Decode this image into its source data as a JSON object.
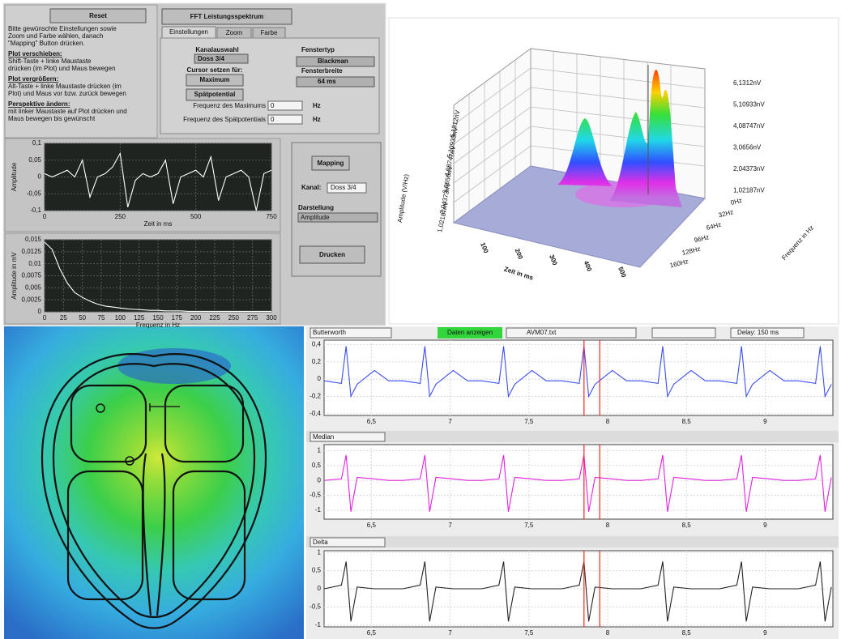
{
  "left_panel": {
    "reset": "Reset",
    "instructions": [
      "Bitte gewünschte Einstellungen sowie",
      "Zoom und Farbe wählen, danach",
      "\"Mapping\" Button drücken.",
      "Plot verschieben:",
      "Shift-Taste + linke Maustaste",
      "drücken (im Plot) und Maus bewegen",
      "Plot vergrößern:",
      "Alt-Taste + linke Maustaste drücken (im",
      "Plot) und Maus vor bzw. zurück bewegen",
      "Perspektive ändern:",
      "mit linker Maustaste auf Plot drücken und",
      "Maus bewegen bis gewünscht"
    ]
  },
  "fft_panel": {
    "title": "FFT Leistungsspektrum",
    "tabs": [
      "Einstellungen",
      "Zoom",
      "Farbe"
    ],
    "channel_label": "Kanalauswahl",
    "channel": "Doss 3/4",
    "cursor_label": "Cursor setzen für:",
    "maximum": "Maximum",
    "late_potential": "Spätpotential",
    "window_label": "Fenstertyp",
    "window": "Blackman",
    "width_label": "Fensterbreite",
    "width": "64 ms",
    "max_freq_label": "Frequenz des Maximums",
    "max_freq": "0",
    "late_freq_label": "Frequenz des Spätpotentials",
    "late_freq": "0",
    "unit": "Hz"
  },
  "mapping_panel": {
    "mapping": "Mapping",
    "channel_label": "Kanal:",
    "channel": "Doss 3/4",
    "display_label": "Darstellung",
    "display": "Amplitude",
    "print": "Drucken"
  },
  "surface_plot": {
    "z_label": "Amplitude (V/Hz)",
    "z_ticks": [
      "1,02187nV",
      "2,04373nV",
      "3,0656nV",
      "4,08747nV",
      "5,10933nV",
      "6,1312nV"
    ],
    "legend": [
      "6,1312nV",
      "5,10933nV",
      "4,08747nV",
      "3,0656nV",
      "2,04373nV",
      "1,02187nV"
    ],
    "freq_ticks": [
      "0Hz",
      "32Hz",
      "64Hz",
      "96Hz",
      "128Hz",
      "160Hz"
    ],
    "freq_label": "Frequenz in Hz",
    "time_ticks": [
      100,
      200,
      300,
      400,
      500
    ],
    "time_label": "Zeit in ms"
  },
  "ecg_toolbar": {
    "filter": "Butterworth",
    "show": "Daten anzeigen",
    "file": "AVM07.txt",
    "delay": "Delay: 150 ms",
    "trace2": "Median",
    "trace3": "Delta"
  },
  "chart_data": [
    {
      "type": "line",
      "xlabel": "Zeit in ms",
      "ylabel": "Amplitude",
      "color": "#ffffff",
      "x": [
        0,
        25,
        50,
        75,
        100,
        125,
        150,
        175,
        200,
        225,
        250,
        275,
        300,
        325,
        350,
        375,
        400,
        425,
        450,
        475,
        500,
        525,
        550,
        575,
        600,
        625,
        650,
        675,
        700,
        725,
        750
      ],
      "values": [
        0.01,
        0.0,
        0.01,
        0.02,
        0.0,
        0.05,
        -0.06,
        0.0,
        0.01,
        0.03,
        0.07,
        -0.09,
        -0.01,
        0.01,
        0.0,
        0.01,
        0.05,
        -0.08,
        0.0,
        0.01,
        0.02,
        0.0,
        0.06,
        -0.07,
        0.0,
        0.01,
        0.02,
        0.0,
        -0.1,
        0.01,
        0.02
      ],
      "xlim": [
        0,
        750
      ],
      "xticks": [
        0,
        250,
        500,
        750
      ],
      "ylim": [
        -0.1,
        0.1
      ],
      "yticks": [
        {
          "value": -0.1,
          "label": "-0,1"
        },
        {
          "value": -0.05,
          "label": "-0,05"
        },
        0,
        {
          "value": 0.05,
          "label": "0,05"
        },
        {
          "value": 0.1,
          "label": "0,1"
        }
      ],
      "grid": true
    },
    {
      "type": "line",
      "xlabel": "Frequenz in Hz",
      "ylabel": "Amplitude in mV",
      "color": "#ffffff",
      "x": [
        0,
        10,
        20,
        30,
        40,
        50,
        60,
        70,
        80,
        90,
        100,
        110,
        120,
        130,
        140,
        150,
        160,
        170,
        180,
        190,
        200,
        210,
        220,
        230,
        240,
        250,
        260,
        270,
        280,
        290,
        300
      ],
      "values": [
        0.0145,
        0.013,
        0.009,
        0.006,
        0.004,
        0.003,
        0.0022,
        0.0016,
        0.0012,
        0.001,
        0.0008,
        0.0006,
        0.0005,
        0.0004,
        0.0003,
        0.0003,
        0.0002,
        0.0002,
        0.0002,
        0.0001,
        0.0001,
        0.0001,
        0.0001,
        0.0001,
        0.0001,
        0.0001,
        0.0001,
        0.0001,
        0.0001,
        0.0001,
        0.0001
      ],
      "xlim": [
        0,
        300
      ],
      "xticks": [
        0,
        25,
        50,
        75,
        100,
        125,
        150,
        175,
        200,
        225,
        250,
        275,
        300
      ],
      "ylim": [
        0,
        0.015
      ],
      "yticks": [
        0,
        {
          "value": 0.0025,
          "label": "0,0025"
        },
        {
          "value": 0.005,
          "label": "0,005"
        },
        {
          "value": 0.0075,
          "label": "0,0075"
        },
        {
          "value": 0.01,
          "label": "0,01"
        },
        {
          "value": 0.0125,
          "label": "0,0125"
        },
        {
          "value": 0.015,
          "label": "0,015"
        }
      ],
      "grid": true
    },
    {
      "type": "line",
      "color": "#3a4cf0",
      "x": [
        6.2,
        6.31,
        6.34,
        6.37,
        6.41,
        6.52,
        6.61,
        6.7,
        6.81,
        6.84,
        6.87,
        6.91,
        7.02,
        7.11,
        7.2,
        7.31,
        7.34,
        7.37,
        7.41,
        7.52,
        7.61,
        7.71,
        7.82,
        7.85,
        7.88,
        7.92,
        8.03,
        8.12,
        8.21,
        8.32,
        8.35,
        8.38,
        8.42,
        8.53,
        8.62,
        8.71,
        8.82,
        8.85,
        8.88,
        8.92,
        9.03,
        9.12,
        9.21,
        9.32,
        9.35,
        9.38,
        9.42
      ],
      "values": [
        -0.02,
        -0.05,
        0.38,
        -0.2,
        -0.06,
        0.1,
        -0.02,
        -0.02,
        -0.05,
        0.38,
        -0.2,
        -0.06,
        0.1,
        -0.02,
        -0.02,
        -0.05,
        0.38,
        -0.2,
        -0.06,
        0.1,
        -0.02,
        -0.02,
        -0.05,
        0.38,
        -0.2,
        -0.06,
        0.1,
        -0.02,
        -0.02,
        -0.05,
        0.38,
        -0.2,
        -0.06,
        0.1,
        -0.02,
        -0.02,
        -0.05,
        0.38,
        -0.2,
        -0.06,
        0.1,
        -0.02,
        -0.02,
        -0.05,
        0.38,
        -0.2,
        -0.06
      ],
      "xlim": [
        6.2,
        9.43
      ],
      "xticks": [
        {
          "value": 6.5,
          "label": "6,5"
        },
        7,
        {
          "value": 7.5,
          "label": "7,5"
        },
        8,
        {
          "value": 8.5,
          "label": "8,5"
        },
        9
      ],
      "ylim": [
        -0.42,
        0.45
      ],
      "yticks": [
        {
          "value": -0.4,
          "label": "-0,4"
        },
        {
          "value": -0.2,
          "label": "-0,2"
        },
        0,
        {
          "value": 0.2,
          "label": "0,2"
        },
        {
          "value": 0.4,
          "label": "0,4"
        }
      ],
      "grid": true,
      "cursors": [
        7.85,
        7.95
      ]
    },
    {
      "type": "line",
      "color": "#e020e0",
      "x": [
        6.2,
        6.31,
        6.34,
        6.37,
        6.41,
        6.52,
        6.61,
        6.7,
        6.81,
        6.84,
        6.87,
        6.91,
        7.02,
        7.11,
        7.2,
        7.31,
        7.34,
        7.37,
        7.41,
        7.52,
        7.61,
        7.71,
        7.82,
        7.85,
        7.88,
        7.92,
        8.03,
        8.12,
        8.21,
        8.32,
        8.35,
        8.38,
        8.42,
        8.53,
        8.62,
        8.71,
        8.82,
        8.85,
        8.88,
        8.92,
        9.03,
        9.12,
        9.21,
        9.32,
        9.35,
        9.38,
        9.42
      ],
      "values": [
        0,
        0.05,
        0.85,
        -1.05,
        0.1,
        0.05,
        0,
        0,
        0.05,
        0.85,
        -1.05,
        0.1,
        0.05,
        0,
        0,
        0.05,
        0.85,
        -1.05,
        0.1,
        0.05,
        0,
        0,
        0.05,
        0.85,
        -1.05,
        0.1,
        0.05,
        0,
        0,
        0.05,
        0.85,
        -1.05,
        0.1,
        0.05,
        0,
        0,
        0.05,
        0.85,
        -1.05,
        0.1,
        0.05,
        0,
        0,
        0.05,
        0.85,
        -1.05,
        0.1
      ],
      "xlim": [
        6.2,
        9.43
      ],
      "xticks": [
        {
          "value": 6.5,
          "label": "6,5"
        },
        7,
        {
          "value": 7.5,
          "label": "7,5"
        },
        8,
        {
          "value": 8.5,
          "label": "8,5"
        },
        9
      ],
      "ylim": [
        -1.3,
        1.2
      ],
      "yticks": [
        -1,
        {
          "value": -0.5,
          "label": "-0,5"
        },
        0,
        {
          "value": 0.5,
          "label": "0,5"
        },
        1
      ],
      "grid": true,
      "cursors": [
        7.85,
        7.95
      ]
    },
    {
      "type": "line",
      "color": "#222222",
      "x": [
        6.2,
        6.31,
        6.34,
        6.37,
        6.41,
        6.52,
        6.61,
        6.7,
        6.81,
        6.84,
        6.87,
        6.91,
        7.02,
        7.11,
        7.2,
        7.31,
        7.34,
        7.37,
        7.41,
        7.52,
        7.61,
        7.71,
        7.82,
        7.85,
        7.88,
        7.92,
        8.03,
        8.12,
        8.21,
        8.32,
        8.35,
        8.38,
        8.42,
        8.53,
        8.62,
        8.71,
        8.82,
        8.85,
        8.88,
        8.92,
        9.03,
        9.12,
        9.21,
        9.32,
        9.35,
        9.38,
        9.42
      ],
      "values": [
        0,
        0.1,
        0.75,
        -0.9,
        0.05,
        0,
        0,
        0,
        0.1,
        0.75,
        -0.9,
        0.05,
        0,
        0,
        0,
        0.1,
        0.75,
        -0.9,
        0.05,
        0,
        0,
        0,
        0.1,
        0.75,
        -0.9,
        0.05,
        0,
        0,
        0,
        0.1,
        0.75,
        -0.9,
        0.05,
        0,
        0,
        0,
        0.1,
        0.75,
        -0.9,
        0.05,
        0,
        0,
        0,
        0.1,
        0.75,
        -0.9,
        0.05
      ],
      "xlim": [
        6.2,
        9.43
      ],
      "xticks": [
        {
          "value": 6.5,
          "label": "6,5"
        },
        7,
        {
          "value": 7.5,
          "label": "7,5"
        },
        8,
        {
          "value": 8.5,
          "label": "8,5"
        },
        9
      ],
      "ylim": [
        -1.05,
        1.05
      ],
      "yticks": [
        -1,
        {
          "value": -0.5,
          "label": "-0,5"
        },
        0,
        {
          "value": 0.5,
          "label": "0,5"
        },
        1
      ],
      "grid": true,
      "cursors": [
        7.85,
        7.95
      ]
    }
  ]
}
